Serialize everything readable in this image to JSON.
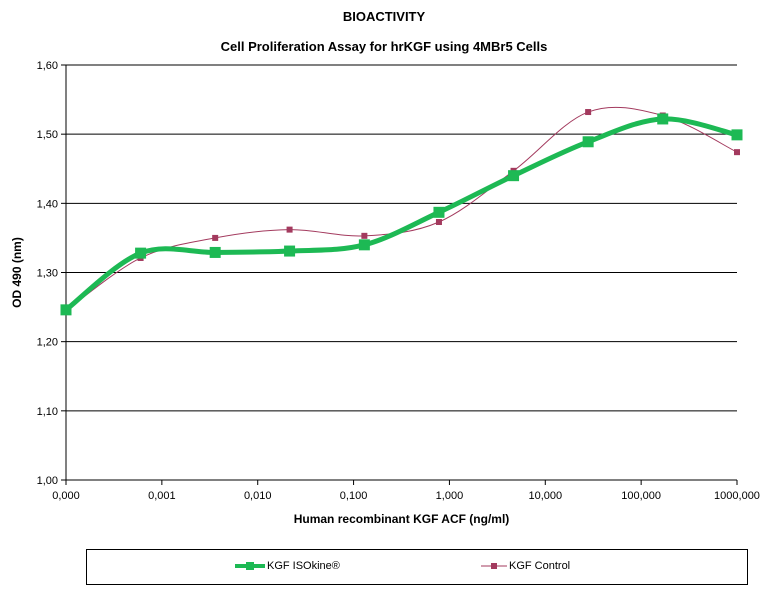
{
  "chart_data": {
    "type": "line",
    "title": "BIOACTIVITY",
    "subtitle": "Cell Proliferation Assay for hrKGF using 4MBr5 Cells",
    "xlabel": "Human recombinant KGF ACF (ng/ml)",
    "ylabel": "OD 490 (nm)",
    "x_scale": "log",
    "x_ticks": [
      "0,000",
      "0,001",
      "0,010",
      "0,100",
      "1,000",
      "10,000",
      "100,000",
      "1000,000"
    ],
    "y_ticks": [
      "1,00",
      "1,10",
      "1,20",
      "1,30",
      "1,40",
      "1,50",
      "1,60"
    ],
    "ylim": [
      1.0,
      1.6
    ],
    "grid": "horizontal",
    "legend_position": "bottom",
    "x": [
      0.0001,
      0.0006,
      0.0036,
      0.0215,
      0.1296,
      0.7776,
      4.666,
      27.99,
      168.0,
      1000.0
    ],
    "series": [
      {
        "name": "KGF ISOkine®",
        "color": "#1db954",
        "marker": "square",
        "values": [
          1.246,
          1.328,
          1.329,
          1.331,
          1.34,
          1.387,
          1.44,
          1.489,
          1.522,
          1.499
        ]
      },
      {
        "name": "KGF Control",
        "color": "#a33a5e",
        "marker": "square",
        "values": [
          1.245,
          1.321,
          1.35,
          1.362,
          1.353,
          1.373,
          1.447,
          1.532,
          1.527,
          1.474
        ]
      }
    ]
  }
}
